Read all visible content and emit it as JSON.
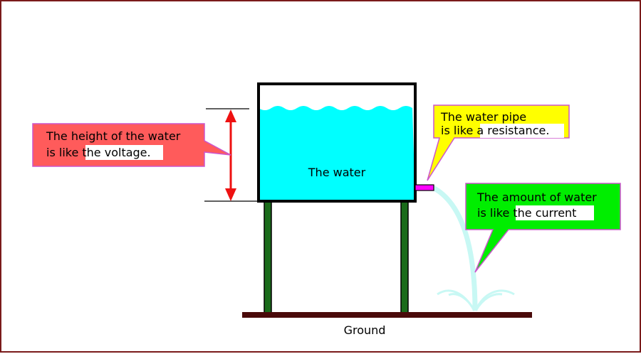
{
  "water_label": "The water",
  "ground_label": "Ground",
  "callouts": {
    "voltage": {
      "line1": "The height of the water",
      "line2_prefix": "is like ",
      "line2_highlight": "the voltage."
    },
    "resistance": {
      "line1": "The water pipe",
      "line2_prefix": "is like ",
      "line2_highlight": "a resistance."
    },
    "current": {
      "line1": "The amount of water",
      "line2_prefix": "is like ",
      "line2_highlight": "the current"
    }
  },
  "colors": {
    "water": "#00ffff",
    "tank_outline": "#000000",
    "legs": "#1a6b1a",
    "ground": "#4a0a0a",
    "pipe": "#ff00ff",
    "spout": "#c8f8f4",
    "arrow": "#ee1111",
    "voltage_box": "#ff5b5b",
    "resistance_box": "#ffff00",
    "current_box": "#00ee00",
    "highlight": "#ffffff"
  }
}
